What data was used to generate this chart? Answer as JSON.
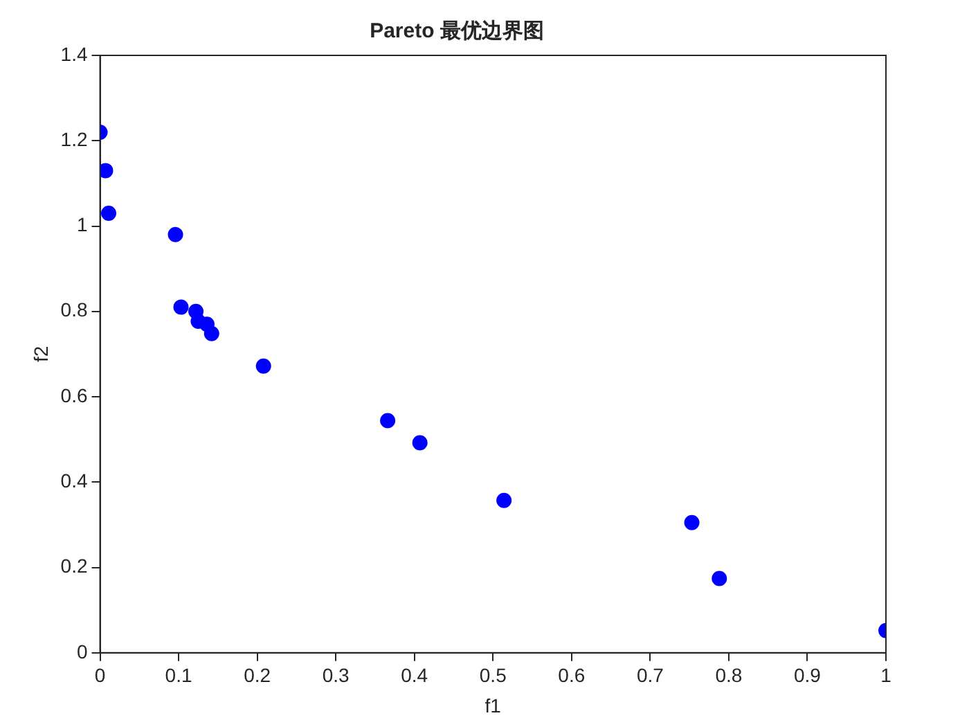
{
  "chart_data": {
    "type": "scatter",
    "title": "Pareto 最优边界图",
    "xlabel": "f1",
    "ylabel": "f2",
    "x": [
      0,
      0.007,
      0.011,
      0.096,
      0.103,
      0.122,
      0.125,
      0.136,
      0.142,
      0.208,
      0.366,
      0.407,
      0.514,
      0.753,
      0.788,
      1.0
    ],
    "series": [
      {
        "color": "#0000ff",
        "values": [
          1.22,
          1.13,
          1.03,
          0.98,
          0.81,
          0.8,
          0.777,
          0.77,
          0.748,
          0.672,
          0.544,
          0.492,
          0.357,
          0.305,
          0.174,
          0.052
        ]
      }
    ],
    "xlim": [
      0,
      1
    ],
    "xticks": [
      0,
      0.1,
      0.2,
      0.3,
      0.4,
      0.5,
      0.6,
      0.7,
      0.8,
      0.9,
      1
    ],
    "ylim": [
      0,
      1.4
    ],
    "yticks": [
      0,
      0.2,
      0.4,
      0.6,
      0.8,
      1,
      1.2,
      1.4
    ],
    "grid": false,
    "legend": false,
    "marker": "circle"
  }
}
